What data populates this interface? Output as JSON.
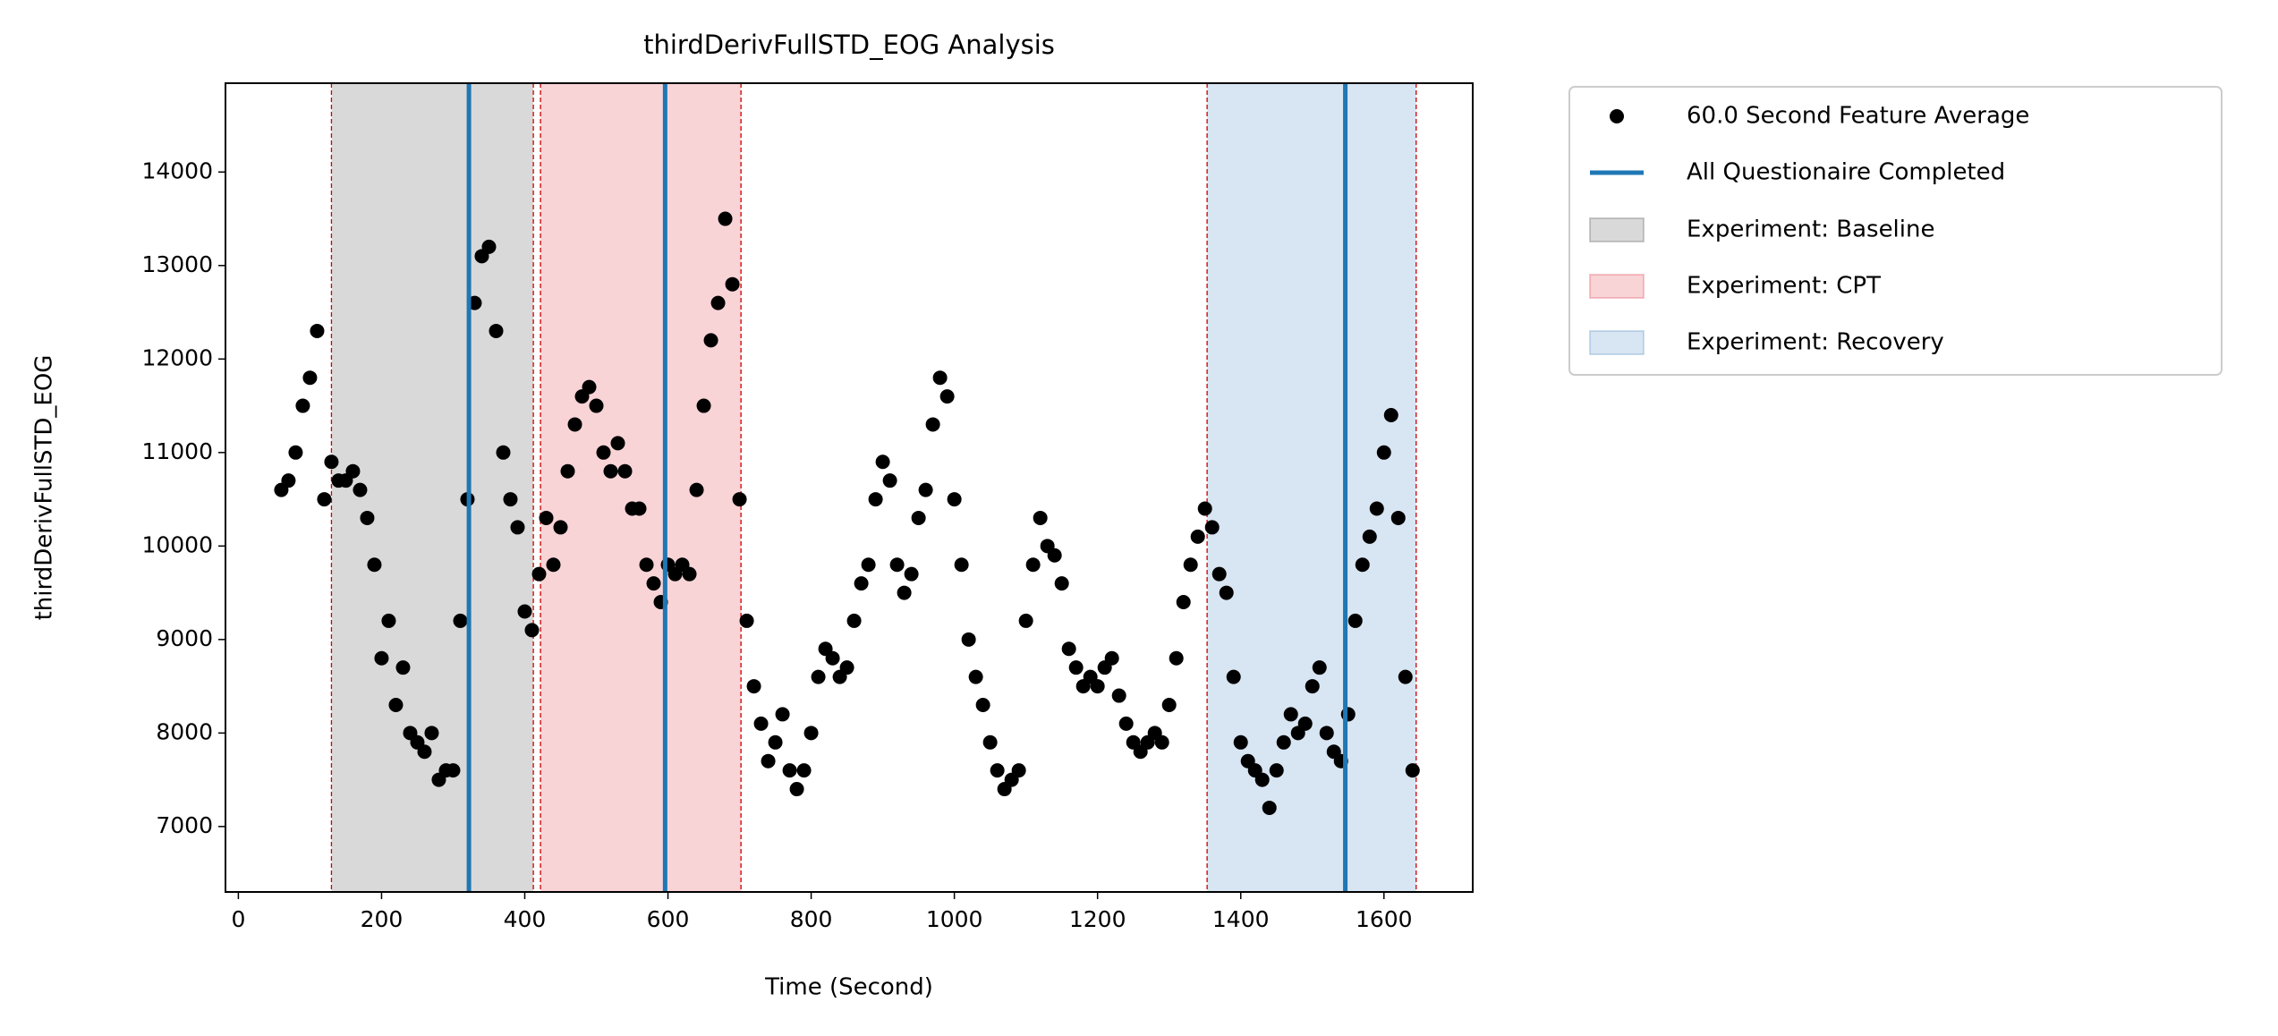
{
  "chart_data": {
    "type": "scatter",
    "title": "thirdDerivFullSTD_EOG Analysis",
    "x_label": "Time (Second)",
    "y_label": "thirdDerivFullSTD_EOG",
    "xlim": [
      -18,
      1724
    ],
    "ylim": [
      6300,
      14950
    ],
    "xticks": [
      0,
      200,
      400,
      600,
      800,
      1000,
      1200,
      1400,
      1600
    ],
    "yticks": [
      7000,
      8000,
      9000,
      10000,
      11000,
      12000,
      13000,
      14000
    ],
    "legend": "outside-upper-right",
    "series": [
      {
        "name": "60.0 Second Feature Average",
        "color": "#000000",
        "x": [
          60,
          70,
          80,
          90,
          100,
          110,
          120,
          130,
          140,
          150,
          160,
          170,
          180,
          190,
          200,
          210,
          220,
          230,
          240,
          250,
          260,
          270,
          280,
          290,
          300,
          310,
          320,
          330,
          340,
          350,
          360,
          370,
          380,
          390,
          400,
          410,
          420,
          430,
          440,
          450,
          460,
          470,
          480,
          490,
          500,
          510,
          520,
          530,
          540,
          550,
          560,
          570,
          580,
          590,
          600,
          610,
          620,
          630,
          640,
          650,
          660,
          670,
          680,
          690,
          700,
          710,
          720,
          730,
          740,
          750,
          760,
          770,
          780,
          790,
          800,
          810,
          820,
          830,
          840,
          850,
          860,
          870,
          880,
          890,
          900,
          910,
          920,
          930,
          940,
          950,
          960,
          970,
          980,
          990,
          1000,
          1010,
          1020,
          1030,
          1040,
          1050,
          1060,
          1070,
          1080,
          1090,
          1100,
          1110,
          1120,
          1130,
          1140,
          1150,
          1160,
          1170,
          1180,
          1190,
          1200,
          1210,
          1220,
          1230,
          1240,
          1250,
          1260,
          1270,
          1280,
          1290,
          1300,
          1310,
          1320,
          1330,
          1340,
          1350,
          1360,
          1370,
          1380,
          1390,
          1400,
          1410,
          1420,
          1430,
          1440,
          1450,
          1460,
          1470,
          1480,
          1490,
          1500,
          1510,
          1520,
          1530,
          1540,
          1550,
          1560,
          1570,
          1580,
          1590,
          1600,
          1610,
          1620,
          1630,
          1640
        ],
        "values": [
          10600,
          10700,
          11000,
          11500,
          11800,
          12300,
          10500,
          10900,
          10700,
          10700,
          10800,
          10600,
          10300,
          9800,
          8800,
          9200,
          8300,
          8700,
          8000,
          7900,
          7800,
          8000,
          7500,
          7600,
          7600,
          9200,
          10500,
          12600,
          13100,
          13200,
          12300,
          11000,
          10500,
          10200,
          9300,
          9100,
          9700,
          10300,
          9800,
          10200,
          10800,
          11300,
          11600,
          11700,
          11500,
          11000,
          10800,
          11100,
          10800,
          10400,
          10400,
          9800,
          9600,
          9400,
          9800,
          9700,
          9800,
          9700,
          10600,
          11500,
          12200,
          12600,
          13500,
          12800,
          10500,
          9200,
          8500,
          8100,
          7700,
          7900,
          8200,
          7600,
          7400,
          7600,
          8000,
          8600,
          8900,
          8800,
          8600,
          8700,
          9200,
          9600,
          9800,
          10500,
          10900,
          10700,
          9800,
          9500,
          9700,
          10300,
          10600,
          11300,
          11800,
          11600,
          10500,
          9800,
          9000,
          8600,
          8300,
          7900,
          7600,
          7400,
          7500,
          7600,
          9200,
          9800,
          10300,
          10000,
          9900,
          9600,
          8900,
          8700,
          8500,
          8600,
          8500,
          8700,
          8800,
          8400,
          8100,
          7900,
          7800,
          7900,
          8000,
          7900,
          8300,
          8800,
          9400,
          9800,
          10100,
          10400,
          10200,
          9700,
          9500,
          8600,
          7900,
          7700,
          7600,
          7500,
          7200,
          7600,
          7900,
          8200,
          8000,
          8100,
          8500,
          8700,
          8000,
          7800,
          7700,
          8200,
          9200,
          9800,
          10100,
          10400,
          11000,
          11400,
          10300,
          8600,
          7600
        ]
      }
    ],
    "vlines": {
      "name": "All Questionaire Completed",
      "color": "#1f77b4",
      "x": [
        322,
        596,
        1546
      ]
    },
    "boundary_color": "#cc0000",
    "spans": [
      {
        "name": "Experiment: Baseline",
        "color": "#808080",
        "range": [
          130,
          412
        ]
      },
      {
        "name": "Experiment: CPT",
        "color": "#e8707c",
        "range": [
          422,
          702
        ]
      },
      {
        "name": "Experiment: Recovery",
        "color": "#7fa9d3",
        "range": [
          1353,
          1645
        ]
      }
    ]
  }
}
